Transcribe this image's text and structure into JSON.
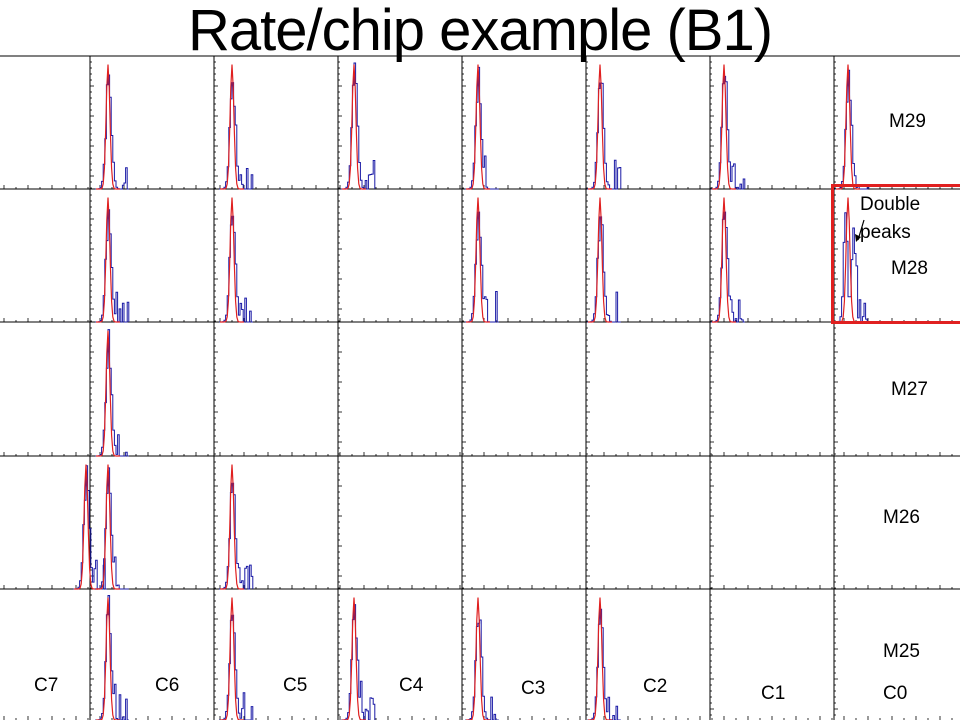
{
  "title": "Rate/chip example (B1)",
  "row_labels": [
    "M29",
    "M28",
    "M27",
    "M26",
    "M25"
  ],
  "col_labels": [
    "C7",
    "C6",
    "C5",
    "C4",
    "C3",
    "C2",
    "C1",
    "C0"
  ],
  "annotation": {
    "line1": "Double",
    "line2": "peaks"
  },
  "colors": {
    "histogram": "#1a1aa6",
    "fit": "#e02020",
    "axes": "#000000",
    "highlight": "#e02020"
  },
  "chart_data": {
    "type": "histogram-grid",
    "rows": [
      "M29",
      "M28",
      "M27",
      "M26",
      "M25"
    ],
    "columns": [
      "C7",
      "C6",
      "C5",
      "C4",
      "C3",
      "C2",
      "C1",
      "C0"
    ],
    "panels_with_peaks": {
      "M29": [
        "C6",
        "C5",
        "C4",
        "C3",
        "C2",
        "C1",
        "C0"
      ],
      "M28": [
        "C6",
        "C5",
        "C3",
        "C2",
        "C1",
        "C0"
      ],
      "M27": [
        "C6"
      ],
      "M26": [
        "C7",
        "C6",
        "C5"
      ],
      "M25": [
        "C6",
        "C5",
        "C4",
        "C3",
        "C2"
      ]
    },
    "highlighted_panel": {
      "row": "M28",
      "column": "C0"
    }
  }
}
